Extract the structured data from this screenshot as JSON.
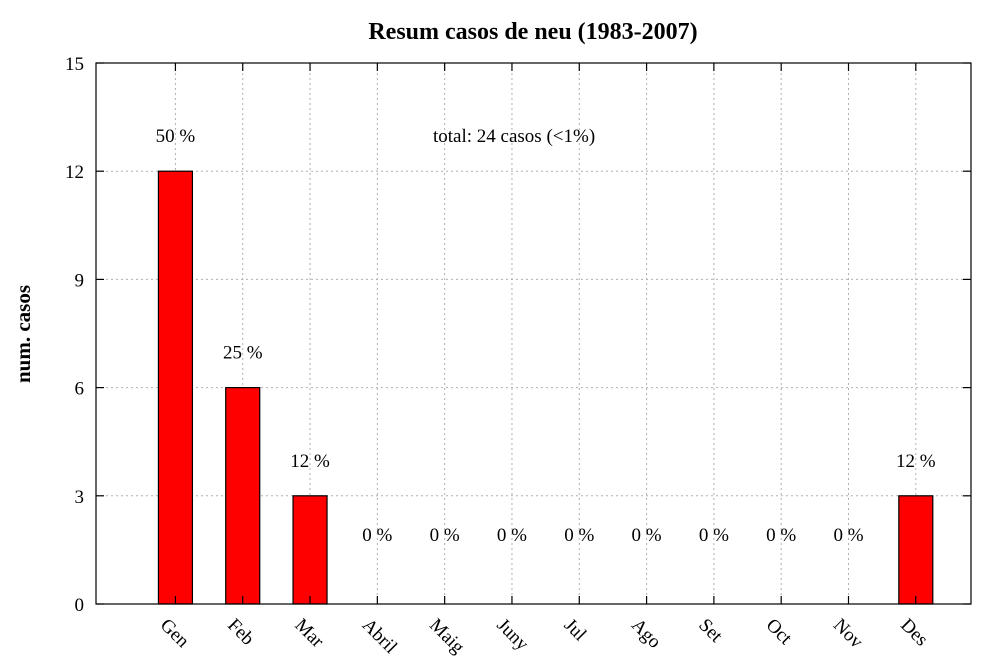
{
  "chart_data": {
    "type": "bar",
    "title": "Resum casos de neu (1983-2007)",
    "xlabel": "",
    "ylabel": "num. casos",
    "categories": [
      "Gen",
      "Feb",
      "Mar",
      "Abril",
      "Maig",
      "Juny",
      "Jul",
      "Ago",
      "Set",
      "Oct",
      "Nov",
      "Des"
    ],
    "values": [
      12,
      6,
      3,
      0,
      0,
      0,
      0,
      0,
      0,
      0,
      0,
      3
    ],
    "percent_labels": [
      "50 %",
      "25 %",
      "12 %",
      "0 %",
      "0 %",
      "0 %",
      "0 %",
      "0 %",
      "0 %",
      "0 %",
      "0 %",
      "12 %"
    ],
    "annotation": "total: 24 casos (<1%)",
    "ylim": [
      0,
      15
    ],
    "yticks": [
      0,
      3,
      6,
      9,
      12,
      15
    ],
    "grid": true,
    "bar_color": "#ff0000"
  }
}
